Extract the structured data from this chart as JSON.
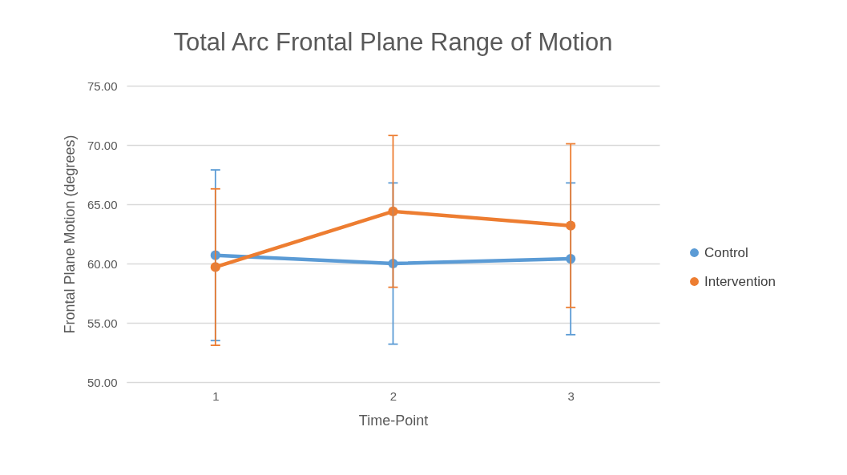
{
  "chart_data": {
    "type": "line",
    "title": "Total Arc Frontal Plane Range of Motion",
    "xlabel": "Time-Point",
    "ylabel": "Frontal Plane Motion (degrees)",
    "categories": [
      "1",
      "2",
      "3"
    ],
    "series": [
      {
        "name": "Control",
        "color": "#5b9bd5",
        "values": [
          60.7,
          60.0,
          60.4
        ],
        "errors": [
          7.2,
          6.8,
          6.4
        ]
      },
      {
        "name": "Intervention",
        "color": "#ed7d31",
        "values": [
          59.7,
          64.4,
          63.2
        ],
        "errors": [
          6.6,
          6.4,
          6.9
        ]
      }
    ],
    "ylim": [
      50,
      75
    ],
    "yticks": [
      {
        "value": 50,
        "label": "50.00"
      },
      {
        "value": 55,
        "label": "55.00"
      },
      {
        "value": 60,
        "label": "60.00"
      },
      {
        "value": 65,
        "label": "65.00"
      },
      {
        "value": 70,
        "label": "70.00"
      },
      {
        "value": 75,
        "label": "75.00"
      }
    ],
    "grid": "y",
    "legend": "right",
    "marker": "circle",
    "line_style": "solid"
  }
}
